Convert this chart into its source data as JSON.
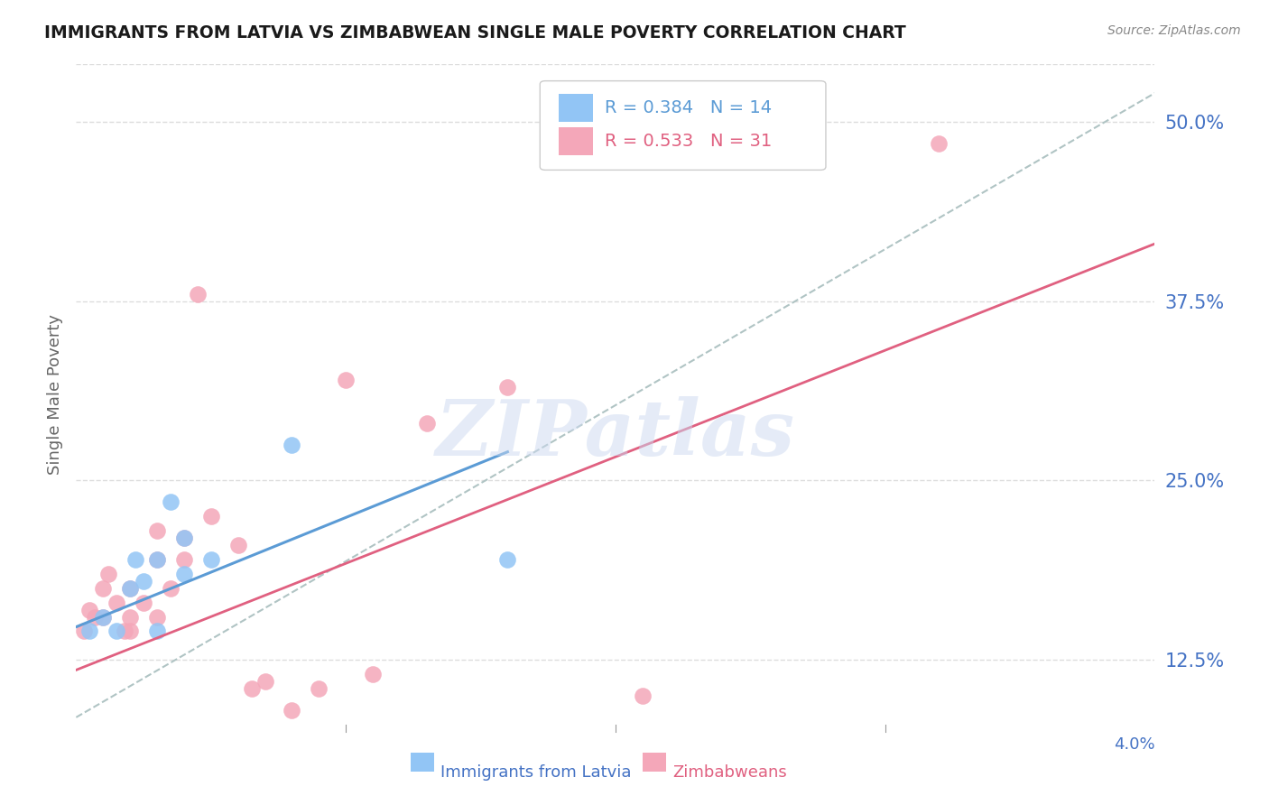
{
  "title": "IMMIGRANTS FROM LATVIA VS ZIMBABWEAN SINGLE MALE POVERTY CORRELATION CHART",
  "source": "Source: ZipAtlas.com",
  "ylabel": "Single Male Poverty",
  "ytick_labels": [
    "12.5%",
    "25.0%",
    "37.5%",
    "50.0%"
  ],
  "ytick_values": [
    0.125,
    0.25,
    0.375,
    0.5
  ],
  "xlim": [
    0.0,
    0.04
  ],
  "ylim": [
    0.08,
    0.54
  ],
  "legend_blue_r": "R = 0.384",
  "legend_blue_n": "N = 14",
  "legend_pink_r": "R = 0.533",
  "legend_pink_n": "N = 31",
  "blue_color": "#92c5f5",
  "pink_color": "#f4a7b9",
  "blue_line_color": "#5b9bd5",
  "pink_line_color": "#e06080",
  "dashed_line_color": "#b0c4c4",
  "label_blue": "Immigrants from Latvia",
  "label_pink": "Zimbabweans",
  "blue_scatter_x": [
    0.0005,
    0.001,
    0.0015,
    0.002,
    0.0022,
    0.0025,
    0.003,
    0.003,
    0.0035,
    0.004,
    0.004,
    0.005,
    0.008,
    0.016
  ],
  "blue_scatter_y": [
    0.145,
    0.155,
    0.145,
    0.175,
    0.195,
    0.18,
    0.145,
    0.195,
    0.235,
    0.21,
    0.185,
    0.195,
    0.275,
    0.195
  ],
  "pink_scatter_x": [
    0.0003,
    0.0005,
    0.0007,
    0.001,
    0.001,
    0.0012,
    0.0015,
    0.0018,
    0.002,
    0.002,
    0.002,
    0.0025,
    0.003,
    0.003,
    0.003,
    0.0035,
    0.004,
    0.004,
    0.0045,
    0.005,
    0.006,
    0.0065,
    0.007,
    0.008,
    0.009,
    0.01,
    0.011,
    0.013,
    0.016,
    0.021,
    0.032
  ],
  "pink_scatter_y": [
    0.145,
    0.16,
    0.155,
    0.155,
    0.175,
    0.185,
    0.165,
    0.145,
    0.145,
    0.155,
    0.175,
    0.165,
    0.155,
    0.195,
    0.215,
    0.175,
    0.195,
    0.21,
    0.38,
    0.225,
    0.205,
    0.105,
    0.11,
    0.09,
    0.105,
    0.32,
    0.115,
    0.29,
    0.315,
    0.1,
    0.485
  ],
  "blue_line_x": [
    0.0,
    0.016
  ],
  "blue_line_y": [
    0.148,
    0.27
  ],
  "pink_line_x": [
    0.0,
    0.04
  ],
  "pink_line_y": [
    0.118,
    0.415
  ],
  "diag_line_x": [
    0.0,
    0.04
  ],
  "diag_line_y": [
    0.085,
    0.52
  ],
  "watermark": "ZIPatlas",
  "title_color": "#1a1a1a",
  "axis_label_color": "#4472c4",
  "ylabel_color": "#666666"
}
